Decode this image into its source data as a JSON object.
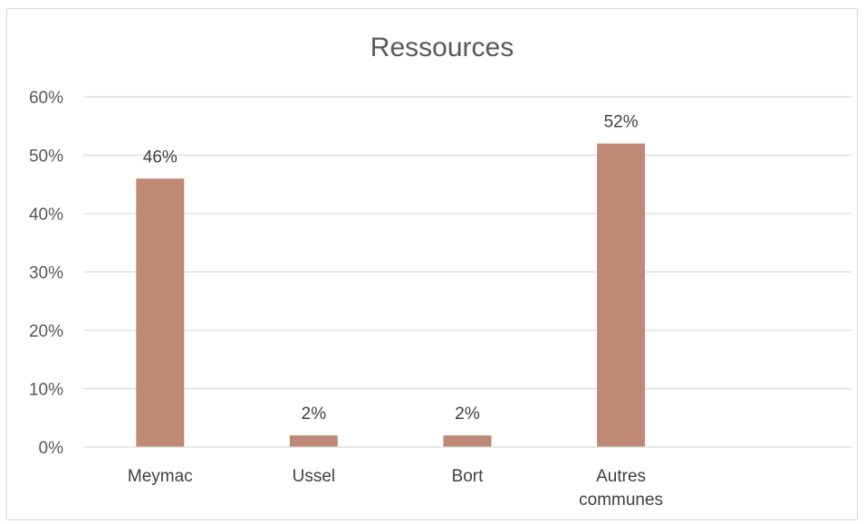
{
  "chart_data": {
    "type": "bar",
    "title": "Ressources",
    "xlabel": "",
    "ylabel": "",
    "categories": [
      "Meymac",
      "Ussel",
      "Bort",
      "Autres communes"
    ],
    "category_lines": [
      [
        "Meymac"
      ],
      [
        "Ussel"
      ],
      [
        "Bort"
      ],
      [
        "Autres",
        "communes"
      ]
    ],
    "values": [
      46,
      2,
      2,
      52
    ],
    "value_labels": [
      "46%",
      "2%",
      "2%",
      "52%"
    ],
    "ylim": [
      0,
      60
    ],
    "yticks": [
      0,
      10,
      20,
      30,
      40,
      50,
      60
    ],
    "ytick_labels": [
      "0%",
      "10%",
      "20%",
      "30%",
      "40%",
      "50%",
      "60%"
    ],
    "grid": true,
    "legend": "none",
    "bar_color": "#be8a76"
  }
}
